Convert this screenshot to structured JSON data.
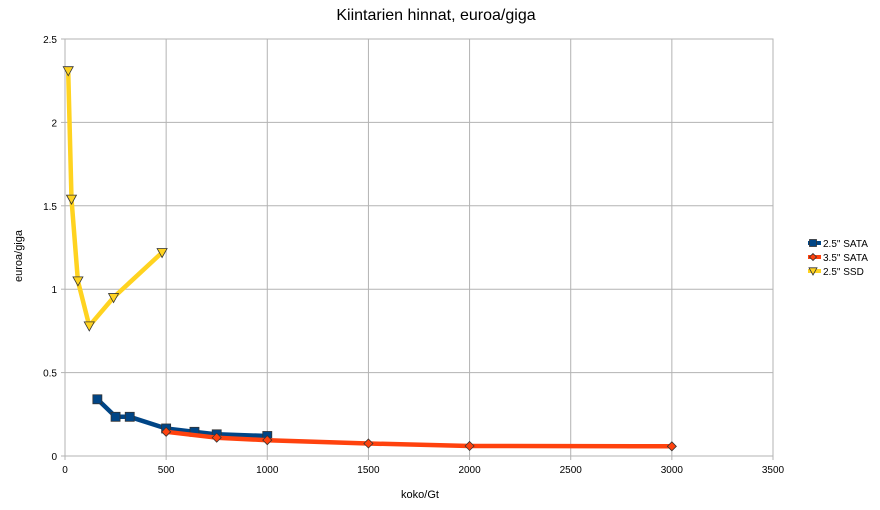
{
  "chart_data": {
    "type": "line",
    "title": "Kiintarien hinnat, euroa/giga",
    "xlabel": "koko/Gt",
    "ylabel": "euroa/giga",
    "xlim": [
      0,
      3500
    ],
    "ylim": [
      0,
      2.5
    ],
    "x_ticks": [
      "0",
      "500",
      "1000",
      "1500",
      "2000",
      "2500",
      "3000",
      "3500"
    ],
    "y_ticks": [
      "0",
      "0.5",
      "1",
      "1.5",
      "2",
      "2.5"
    ],
    "grid": true,
    "legend_position": "right",
    "series": [
      {
        "name": "2.5\" SATA",
        "color": "#004586",
        "marker": "square",
        "points": [
          [
            160,
            0.34
          ],
          [
            250,
            0.235
          ],
          [
            320,
            0.235
          ],
          [
            500,
            0.165
          ],
          [
            640,
            0.145
          ],
          [
            750,
            0.13
          ],
          [
            1000,
            0.12
          ]
        ]
      },
      {
        "name": "3.5\" SATA",
        "color": "#ff420e",
        "marker": "diamond",
        "points": [
          [
            500,
            0.145
          ],
          [
            750,
            0.11
          ],
          [
            1000,
            0.095
          ],
          [
            1500,
            0.075
          ],
          [
            2000,
            0.06
          ],
          [
            3000,
            0.058
          ]
        ]
      },
      {
        "name": "2.5\" SSD",
        "color": "#ffd320",
        "marker": "triangle-down",
        "points": [
          [
            16,
            2.31
          ],
          [
            32,
            1.54
          ],
          [
            64,
            1.05
          ],
          [
            120,
            0.78
          ],
          [
            240,
            0.95
          ],
          [
            480,
            1.22
          ]
        ]
      }
    ]
  }
}
